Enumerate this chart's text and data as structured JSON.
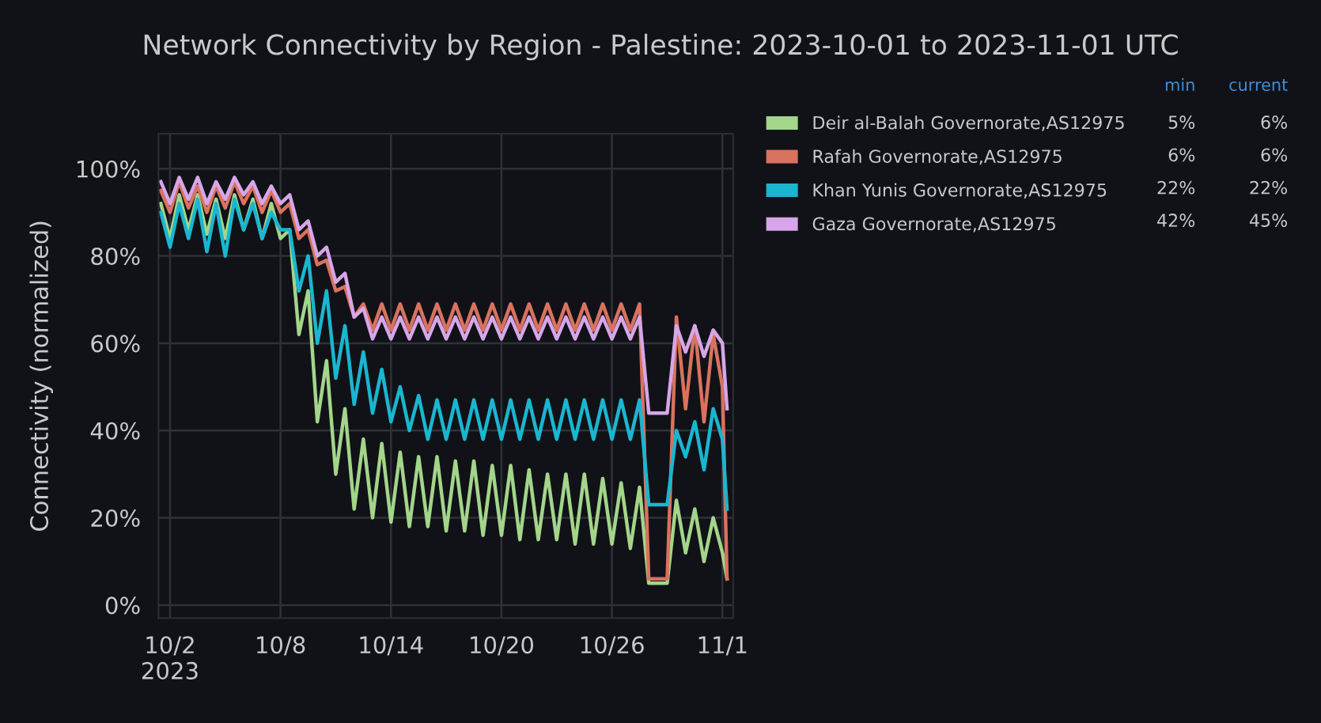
{
  "chart_data": {
    "type": "line",
    "title": "Network Connectivity by Region - Palestine: 2023-10-01 to 2023-11-01 UTC",
    "ylabel": "Connectivity (normalized)",
    "x": [
      "2023-10-01T12:00",
      "2023-10-02T00:00",
      "2023-10-02T12:00",
      "2023-10-03T00:00",
      "2023-10-03T12:00",
      "2023-10-04T00:00",
      "2023-10-04T12:00",
      "2023-10-05T00:00",
      "2023-10-05T12:00",
      "2023-10-06T00:00",
      "2023-10-06T12:00",
      "2023-10-07T00:00",
      "2023-10-07T12:00",
      "2023-10-08T00:00",
      "2023-10-08T12:00",
      "2023-10-09T00:00",
      "2023-10-09T12:00",
      "2023-10-10T00:00",
      "2023-10-10T12:00",
      "2023-10-11T00:00",
      "2023-10-11T12:00",
      "2023-10-12T00:00",
      "2023-10-12T12:00",
      "2023-10-13T00:00",
      "2023-10-13T12:00",
      "2023-10-14T00:00",
      "2023-10-14T12:00",
      "2023-10-15T00:00",
      "2023-10-15T12:00",
      "2023-10-16T00:00",
      "2023-10-16T12:00",
      "2023-10-17T00:00",
      "2023-10-17T12:00",
      "2023-10-18T00:00",
      "2023-10-18T12:00",
      "2023-10-19T00:00",
      "2023-10-19T12:00",
      "2023-10-20T00:00",
      "2023-10-20T12:00",
      "2023-10-21T00:00",
      "2023-10-21T12:00",
      "2023-10-22T00:00",
      "2023-10-22T12:00",
      "2023-10-23T00:00",
      "2023-10-23T12:00",
      "2023-10-24T00:00",
      "2023-10-24T12:00",
      "2023-10-25T00:00",
      "2023-10-25T12:00",
      "2023-10-26T00:00",
      "2023-10-26T12:00",
      "2023-10-27T00:00",
      "2023-10-27T12:00",
      "2023-10-28T00:00",
      "2023-10-28T12:00",
      "2023-10-29T00:00",
      "2023-10-29T12:00",
      "2023-10-30T00:00",
      "2023-10-30T12:00",
      "2023-10-31T00:00",
      "2023-10-31T12:00",
      "2023-11-01T00:00",
      "2023-11-01T06:00"
    ],
    "series": [
      {
        "name": "Deir al-Balah Governorate,AS12975",
        "color": "#a3d58a",
        "values": [
          92,
          84,
          94,
          86,
          94,
          85,
          93,
          84,
          94,
          86,
          93,
          84,
          92,
          84,
          86,
          62,
          72,
          42,
          56,
          30,
          45,
          22,
          38,
          20,
          37,
          19,
          35,
          18,
          34,
          18,
          34,
          17,
          33,
          17,
          33,
          16,
          32,
          16,
          32,
          15,
          31,
          15,
          30,
          15,
          30,
          14,
          30,
          14,
          29,
          14,
          28,
          13,
          27,
          5,
          5,
          5,
          24,
          12,
          22,
          10,
          20,
          12,
          6
        ]
      },
      {
        "name": "Rafah Governorate,AS12975",
        "color": "#d9725e",
        "values": [
          95,
          90,
          97,
          91,
          96,
          90,
          96,
          91,
          97,
          92,
          96,
          90,
          95,
          90,
          92,
          84,
          86,
          78,
          79,
          72,
          73,
          66,
          69,
          63,
          69,
          63,
          69,
          63,
          69,
          63,
          69,
          63,
          69,
          63,
          69,
          63,
          69,
          63,
          69,
          63,
          69,
          63,
          69,
          63,
          69,
          63,
          69,
          63,
          69,
          63,
          69,
          63,
          69,
          6,
          6,
          6,
          66,
          45,
          64,
          42,
          62,
          50,
          6
        ]
      },
      {
        "name": "Khan Yunis Governorate,AS12975",
        "color": "#1ab6d0",
        "values": [
          90,
          82,
          92,
          84,
          93,
          81,
          92,
          80,
          93,
          86,
          92,
          84,
          90,
          86,
          86,
          72,
          80,
          60,
          72,
          52,
          64,
          46,
          58,
          44,
          54,
          42,
          50,
          40,
          48,
          38,
          47,
          38,
          47,
          38,
          47,
          38,
          47,
          38,
          47,
          38,
          47,
          38,
          47,
          38,
          47,
          38,
          47,
          38,
          47,
          38,
          47,
          38,
          47,
          23,
          23,
          23,
          40,
          34,
          42,
          31,
          45,
          38,
          22
        ]
      },
      {
        "name": "Gaza Governorate,AS12975",
        "color": "#d6a6e8",
        "values": [
          97,
          92,
          98,
          93,
          98,
          92,
          97,
          93,
          98,
          94,
          97,
          92,
          96,
          92,
          94,
          86,
          88,
          80,
          82,
          74,
          76,
          66,
          68,
          61,
          66,
          61,
          66,
          61,
          66,
          61,
          66,
          61,
          66,
          61,
          66,
          61,
          66,
          61,
          66,
          61,
          66,
          61,
          66,
          61,
          66,
          61,
          66,
          61,
          66,
          61,
          66,
          61,
          66,
          44,
          44,
          44,
          64,
          58,
          64,
          57,
          63,
          60,
          45
        ]
      }
    ],
    "annotations": [
      "min",
      "current",
      "5%",
      "6%",
      "6%",
      "6%",
      "22%",
      "22%",
      "42%",
      "45%"
    ],
    "xlim": [
      "2023-10-01T09:00",
      "2023-11-01T14:00"
    ],
    "xticks": [
      {
        "value": "2023-10-02",
        "label": "10/2\n2023"
      },
      {
        "value": "2023-10-08",
        "label": "10/8"
      },
      {
        "value": "2023-10-14",
        "label": "10/14"
      },
      {
        "value": "2023-10-20",
        "label": "10/20"
      },
      {
        "value": "2023-10-26",
        "label": "10/26"
      },
      {
        "value": "2023-11-01",
        "label": "11/1"
      }
    ],
    "ylim": [
      -3,
      108
    ],
    "yticks": [
      {
        "value": 0,
        "label": "0%"
      },
      {
        "value": 20,
        "label": "20%"
      },
      {
        "value": 40,
        "label": "40%"
      },
      {
        "value": 60,
        "label": "60%"
      },
      {
        "value": 80,
        "label": "80%"
      },
      {
        "value": 100,
        "label": "100%"
      }
    ],
    "grid": true,
    "legend": "right",
    "marker": "none",
    "line_style": "solid"
  }
}
